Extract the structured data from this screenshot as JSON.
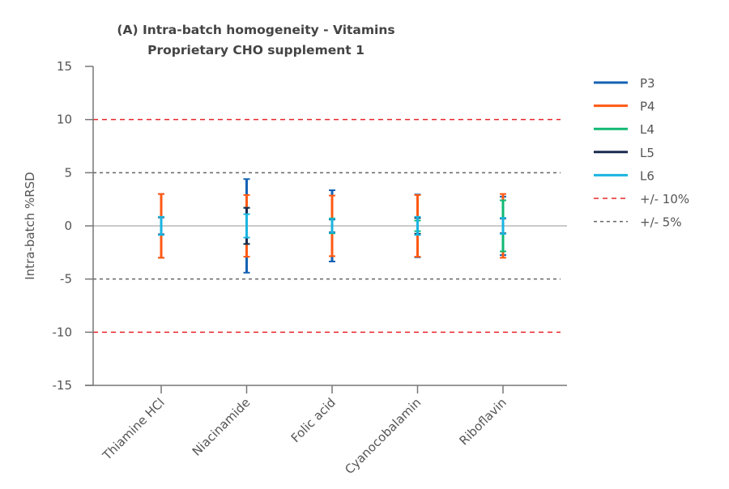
{
  "chart_data": {
    "type": "errorbar",
    "title": "(A) Intra-batch homogeneity - Vitamins",
    "subtitle": "Proprietary CHO supplement 1",
    "xlabel": "",
    "ylabel": "Intra-batch %RSD",
    "ylim": [
      -15,
      15
    ],
    "yticks": [
      "15",
      "10",
      "5",
      "0",
      "-5",
      "-10",
      "-15"
    ],
    "ytick_values": [
      15,
      10,
      5,
      0,
      -5,
      -10,
      -15
    ],
    "categories": [
      "Thiamine HCl",
      "Niacinamide",
      "Folic acid",
      "Cyanocobalamin",
      "Riboflavin"
    ],
    "series": [
      {
        "name": "P3",
        "color": "#1462b4",
        "values": [
          3.0,
          4.4,
          3.35,
          2.95,
          2.75
        ]
      },
      {
        "name": "P4",
        "color": "#ff5a14",
        "values": [
          3.0,
          2.9,
          2.85,
          2.9,
          3.0
        ]
      },
      {
        "name": "L4",
        "color": "#12b874",
        "values": [
          0.8,
          1.7,
          0.7,
          0.5,
          2.4
        ]
      },
      {
        "name": "L5",
        "color": "#1a2a4e",
        "values": [
          0.8,
          1.7,
          0.6,
          0.75,
          0.7
        ]
      },
      {
        "name": "L6",
        "color": "#1ab4e0",
        "values": [
          0.85,
          1.1,
          0.65,
          0.85,
          0.75
        ]
      }
    ],
    "reference_lines": [
      {
        "name": "+/- 10%",
        "value": 10,
        "color": "#e8262a",
        "style": "dashed"
      },
      {
        "name": "+/- 5%",
        "value": 5,
        "color": "#666666",
        "style": "dotted"
      }
    ],
    "zero_line": true,
    "grid": false,
    "legend_position": "right"
  }
}
